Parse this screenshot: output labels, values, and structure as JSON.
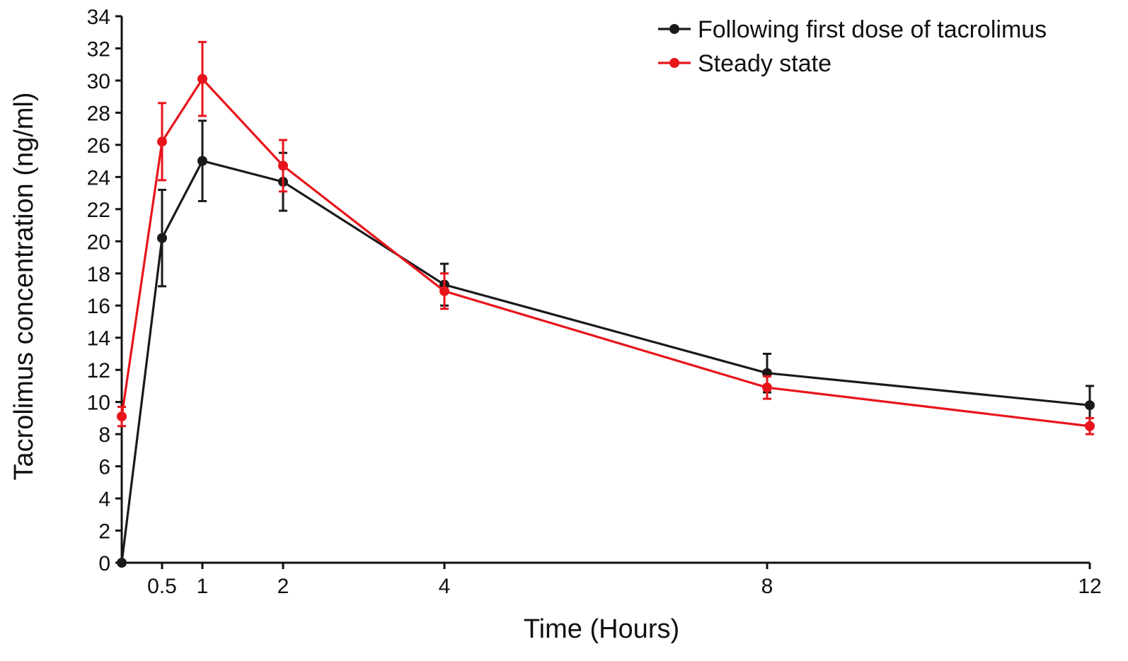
{
  "chart_data": {
    "type": "line",
    "xlabel": "Time (Hours)",
    "ylabel": "Tacrolimus concentration (ng/ml)",
    "xlim": [
      0,
      12
    ],
    "ylim": [
      0,
      34
    ],
    "x_ticks": [
      0.5,
      1,
      2,
      4,
      8,
      12
    ],
    "y_ticks": [
      0,
      2,
      4,
      6,
      8,
      10,
      12,
      14,
      16,
      18,
      20,
      22,
      24,
      26,
      28,
      30,
      32,
      34
    ],
    "grid": false,
    "legend_position": "top-right",
    "series": [
      {
        "name": "Following first dose of tacrolimus",
        "color": "#1a1a1a",
        "x": [
          0,
          0.5,
          1,
          2,
          4,
          8,
          12
        ],
        "values": [
          0,
          20.2,
          25.0,
          23.7,
          17.3,
          11.8,
          9.8
        ],
        "error": [
          0,
          3.0,
          2.5,
          1.8,
          1.3,
          1.2,
          1.2
        ]
      },
      {
        "name": "Steady state",
        "color": "#e8141b",
        "x": [
          0,
          0.5,
          1,
          2,
          4,
          8,
          12
        ],
        "values": [
          9.1,
          26.2,
          30.1,
          24.7,
          16.9,
          10.9,
          8.5
        ],
        "error": [
          0.6,
          2.4,
          2.3,
          1.6,
          1.1,
          0.7,
          0.5
        ]
      }
    ]
  }
}
